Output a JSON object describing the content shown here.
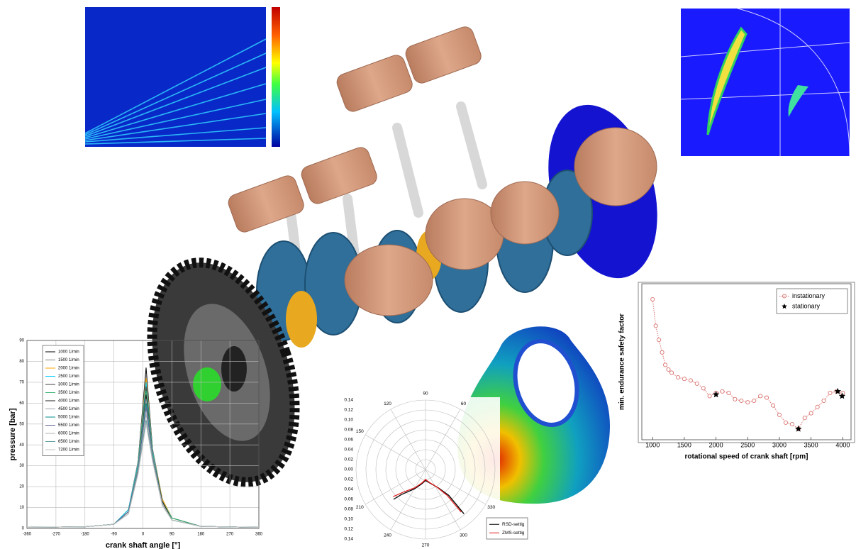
{
  "chart_data": [
    {
      "type": "line",
      "xlabel": "crank shaft angle  [°]",
      "ylabel": "pressure  [bar]",
      "xlim": [
        -360,
        360
      ],
      "xticks": [
        -360,
        -270,
        -180,
        -90,
        0,
        90,
        180,
        270,
        360
      ],
      "ylim": [
        0,
        90
      ],
      "yticks": [
        0,
        10,
        20,
        30,
        40,
        50,
        60,
        70,
        80,
        90
      ],
      "grid": true,
      "legend": "upper left",
      "x": [
        -360,
        -180,
        -90,
        -45,
        -15,
        10,
        30,
        60,
        90,
        180,
        360
      ],
      "series": [
        {
          "name": "1000 1/min",
          "color": "#000000",
          "values": [
            0.5,
            0.8,
            2,
            9,
            32,
            77,
            38,
            14,
            5,
            1,
            0.5
          ]
        },
        {
          "name": "1500 1/min",
          "color": "#808080",
          "values": [
            0.5,
            0.8,
            2,
            9,
            32,
            74,
            38,
            14,
            5,
            1,
            0.5
          ]
        },
        {
          "name": "2000 1/min",
          "color": "#ffa500",
          "values": [
            0.5,
            0.8,
            2,
            9,
            31,
            72,
            37,
            14,
            5,
            1,
            0.5
          ]
        },
        {
          "name": "2500 1/min",
          "color": "#00ccff",
          "values": [
            0.5,
            0.8,
            2,
            9,
            31,
            70,
            37,
            13,
            5,
            1,
            0.5
          ]
        },
        {
          "name": "3000 1/min",
          "color": "#404040",
          "values": [
            0.5,
            0.8,
            2,
            8,
            30,
            68,
            36,
            13,
            5,
            1,
            0.5
          ]
        },
        {
          "name": "3500 1/min",
          "color": "#3cb371",
          "values": [
            0.5,
            0.8,
            2,
            8,
            30,
            66,
            36,
            13,
            5,
            1,
            0.5
          ]
        },
        {
          "name": "4000 1/min",
          "color": "#1f1f1f",
          "values": [
            0.5,
            0.8,
            2,
            8,
            29,
            64,
            35,
            13,
            4,
            1,
            0.5
          ]
        },
        {
          "name": "4500 1/min",
          "color": "#9aa0a6",
          "values": [
            0.5,
            0.8,
            2,
            8,
            29,
            62,
            35,
            12,
            4,
            1,
            0.5
          ]
        },
        {
          "name": "5000 1/min",
          "color": "#008b8b",
          "values": [
            0.5,
            0.8,
            2,
            8,
            28,
            60,
            34,
            12,
            4,
            1,
            0.5
          ]
        },
        {
          "name": "5500 1/min",
          "color": "#666699",
          "values": [
            0.5,
            0.8,
            2,
            8,
            28,
            58,
            34,
            12,
            4,
            1,
            0.5
          ]
        },
        {
          "name": "6000 1/min",
          "color": "#b0b0b0",
          "values": [
            0.5,
            0.8,
            2,
            7,
            27,
            55,
            33,
            12,
            4,
            1,
            0.5
          ]
        },
        {
          "name": "6500 1/min",
          "color": "#5f9ea0",
          "values": [
            0.5,
            0.8,
            2,
            7,
            27,
            52,
            33,
            11,
            4,
            1,
            0.5
          ]
        },
        {
          "name": "7200 1/min",
          "color": "#c0c0c0",
          "values": [
            0.5,
            0.8,
            2,
            7,
            26,
            50,
            32,
            11,
            4,
            1,
            0.5
          ]
        }
      ]
    },
    {
      "type": "polar",
      "legend": "lower right",
      "rlim": [
        0,
        0.14
      ],
      "rticks": [
        {
          "value": 0,
          "label": "0.00"
        },
        0.02,
        0.04,
        0.06,
        0.08,
        {
          "value": 0.1,
          "label": "0.10"
        },
        0.12,
        0.14
      ],
      "thetaticks": [
        60,
        90,
        120,
        150,
        210,
        240,
        270,
        300,
        330
      ],
      "series": [
        {
          "name": "RSD-settig",
          "color": "#000000",
          "theta": [
            223,
            226,
            240,
            255,
            270,
            290,
            305,
            312,
            311
          ],
          "r": [
            0.088,
            0.07,
            0.045,
            0.03,
            0.022,
            0.03,
            0.045,
            0.07,
            0.118
          ]
        },
        {
          "name": "ZMS-settig",
          "color": "#e02020",
          "theta": [
            220,
            225,
            240,
            255,
            270,
            288,
            303,
            310,
            310
          ],
          "r": [
            0.085,
            0.065,
            0.042,
            0.028,
            0.02,
            0.028,
            0.042,
            0.068,
            0.112
          ]
        }
      ]
    },
    {
      "type": "line",
      "xlabel": "rotational speed of crank shaft [rpm]",
      "ylabel": "min. endurance safety factor",
      "xlim": [
        830,
        4130
      ],
      "xticks": [
        1000,
        1500,
        2000,
        2500,
        3000,
        3500,
        4000
      ],
      "ylim": [
        0,
        10
      ],
      "grid": false,
      "legend": "upper right",
      "series": [
        {
          "name": "instationary",
          "color": "#d9736f",
          "marker": "circle",
          "linestyle": "dotted",
          "x": [
            1000,
            1050,
            1100,
            1150,
            1200,
            1250,
            1300,
            1400,
            1500,
            1600,
            1700,
            1800,
            1900,
            2000,
            2100,
            2200,
            2300,
            2400,
            2500,
            2600,
            2700,
            2800,
            2900,
            3000,
            3100,
            3200,
            3300,
            3400,
            3500,
            3600,
            3700,
            3800,
            3900,
            4000
          ],
          "values": [
            9.0,
            7.3,
            6.4,
            5.6,
            4.8,
            4.5,
            4.3,
            4.0,
            3.9,
            3.8,
            3.6,
            3.3,
            2.8,
            3.0,
            3.1,
            3.0,
            2.6,
            2.5,
            2.4,
            2.5,
            2.8,
            2.7,
            2.2,
            1.6,
            1.1,
            1.0,
            0.7,
            1.4,
            1.7,
            2.1,
            2.5,
            3.0,
            3.1,
            3.0
          ]
        },
        {
          "name": "stationary",
          "color": "#000000",
          "marker": "star",
          "line": false,
          "x": [
            2000,
            3300,
            3920,
            3990
          ],
          "values": [
            2.9,
            0.7,
            3.1,
            2.8
          ]
        }
      ]
    }
  ]
}
